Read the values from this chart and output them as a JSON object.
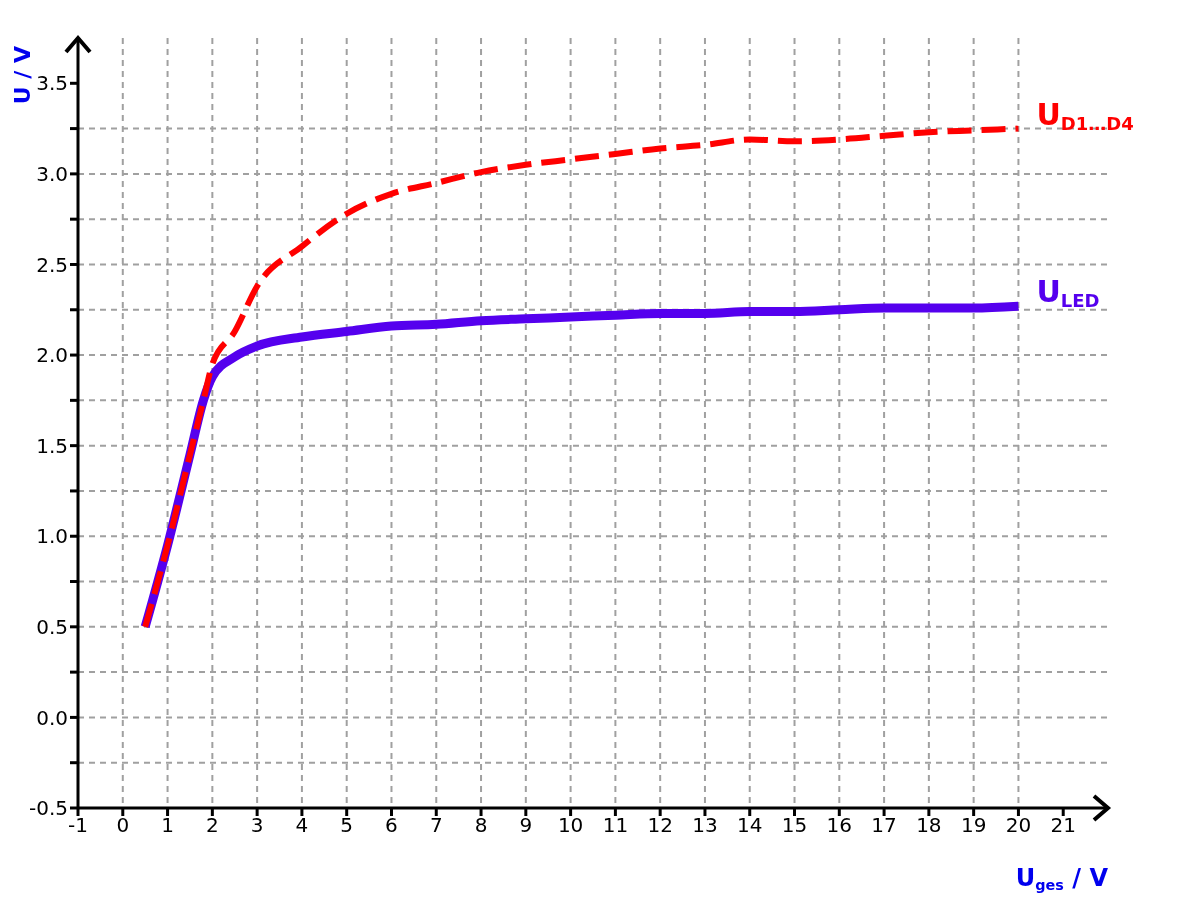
{
  "chart_data": {
    "type": "line",
    "xlabel": "U$_{ges}$ / V",
    "ylabel": "U / V",
    "marker": "none",
    "grid": true,
    "xlim": [
      -1,
      22
    ],
    "xticks": [
      -1,
      0,
      1,
      2,
      3,
      4,
      5,
      6,
      7,
      8,
      9,
      10,
      11,
      12,
      13,
      14,
      15,
      16,
      17,
      18,
      19,
      20,
      21
    ],
    "ylim": [
      -0.5,
      3.75
    ],
    "yticks": [
      -0.5,
      {
        "value": -0.25,
        "label": null
      },
      {
        "value": 0,
        "label": "0.0"
      },
      {
        "value": 0.25,
        "label": null
      },
      0.5,
      {
        "value": 0.75,
        "label": null
      },
      {
        "value": 1,
        "label": "1.0"
      },
      {
        "value": 1.25,
        "label": null
      },
      1.5,
      {
        "value": 1.75,
        "label": null
      },
      {
        "value": 2,
        "label": "2.0"
      },
      {
        "value": 2.25,
        "label": null
      },
      2.5,
      {
        "value": 2.75,
        "label": null
      },
      {
        "value": 3,
        "label": "3.0"
      },
      {
        "value": 3.25,
        "label": null
      },
      3.5
    ],
    "x": [
      0.5,
      1,
      1.5,
      1.8,
      2,
      2.5,
      3,
      4,
      5,
      6,
      7,
      8,
      9,
      10,
      11,
      12,
      13,
      14,
      15,
      16,
      17,
      18,
      19,
      20
    ],
    "series": [
      {
        "name": "U$_{LED}$",
        "color": "#5500ee",
        "line_style": "solid",
        "values": [
          0.5,
          0.95,
          1.45,
          1.75,
          1.88,
          1.99,
          2.05,
          2.1,
          2.13,
          2.16,
          2.17,
          2.19,
          2.2,
          2.21,
          2.22,
          2.23,
          2.23,
          2.24,
          2.24,
          2.25,
          2.26,
          2.26,
          2.26,
          2.27
        ]
      },
      {
        "name": "U$_{D1…D4}$",
        "color": "#ff0000",
        "line_style": "dashed",
        "values": [
          0.5,
          0.95,
          1.45,
          1.75,
          1.95,
          2.13,
          2.38,
          2.6,
          2.78,
          2.89,
          2.95,
          3.01,
          3.05,
          3.08,
          3.11,
          3.14,
          3.16,
          3.19,
          3.18,
          3.19,
          3.21,
          3.23,
          3.24,
          3.25
        ]
      }
    ]
  }
}
